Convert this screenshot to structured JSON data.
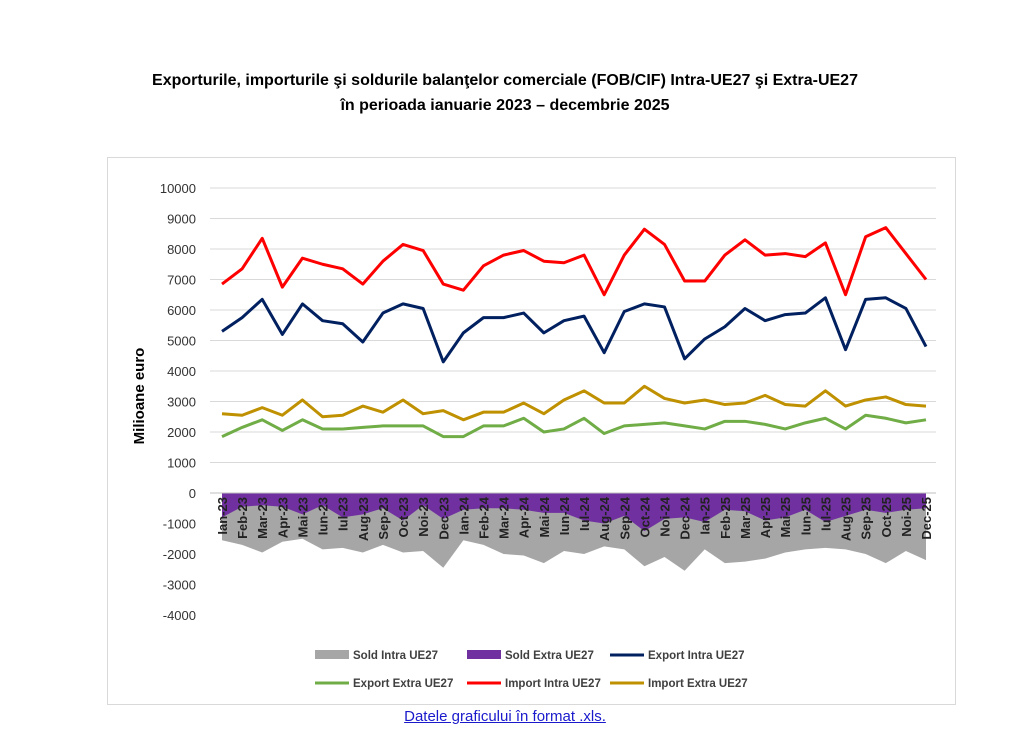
{
  "title": {
    "line1": "Exporturile, importurile şi soldurile balanţelor comerciale (FOB/CIF) Intra-UE27 şi Extra-UE27",
    "line2": "în perioada ianuarie 2023 – decembrie 2025"
  },
  "link_text": "Datele graficului în format .xls.",
  "chart_data": {
    "type": "line",
    "ylabel": "Milioane euro",
    "ylim": [
      -4000,
      10000
    ],
    "yticks": [
      10000,
      9000,
      8000,
      7000,
      6000,
      5000,
      4000,
      3000,
      2000,
      1000,
      0,
      -1000,
      -2000,
      -3000,
      -4000
    ],
    "categories": [
      "Ian-23",
      "Feb-23",
      "Mar-23",
      "Apr-23",
      "Mai-23",
      "Iun-23",
      "Iul-23",
      "Aug-23",
      "Sep-23",
      "Oct-23",
      "Noi-23",
      "Dec-23",
      "Ian-24",
      "Feb-24",
      "Mar-24",
      "Apr-24",
      "Mai-24",
      "Iun-24",
      "Iul-24",
      "Aug-24",
      "Sep-24",
      "Oct-24",
      "Noi-24",
      "Dec-24",
      "Ian-25",
      "Feb-25",
      "Mar-25",
      "Apr-25",
      "Mai-25",
      "Iun-25",
      "Iul-25",
      "Aug-25",
      "Sep-25",
      "Oct-25",
      "Noi-25",
      "Dec-25"
    ],
    "series": [
      {
        "name": "Sold Intra UE27",
        "kind": "area",
        "color": "#a6a6a6",
        "values": [
          -1550,
          -1700,
          -1950,
          -1600,
          -1500,
          -1850,
          -1800,
          -1950,
          -1700,
          -1950,
          -1900,
          -2450,
          -1550,
          -1700,
          -2000,
          -2050,
          -2300,
          -1900,
          -2000,
          -1750,
          -1850,
          -2400,
          -2100,
          -2550,
          -1850,
          -2300,
          -2250,
          -2150,
          -1950,
          -1850,
          -1800,
          -1850,
          -2000,
          -2300,
          -1900,
          -2200
        ]
      },
      {
        "name": "Sold Extra UE27",
        "kind": "area",
        "color": "#7030a0",
        "values": [
          -800,
          -450,
          -400,
          -450,
          -700,
          -400,
          -800,
          -700,
          -500,
          -900,
          -400,
          -850,
          -550,
          -500,
          -500,
          -550,
          -650,
          -650,
          -900,
          -1000,
          -750,
          -1250,
          -850,
          -800,
          -950,
          -550,
          -600,
          -900,
          -800,
          -550,
          -950,
          -750,
          -550,
          -650,
          -550,
          -500
        ]
      },
      {
        "name": "Export Intra UE27",
        "kind": "line",
        "color": "#002060",
        "values": [
          5300,
          5750,
          6350,
          5200,
          6200,
          5650,
          5550,
          4950,
          5900,
          6200,
          6050,
          4300,
          5250,
          5750,
          5750,
          5900,
          5250,
          5650,
          5800,
          4600,
          5950,
          6200,
          6100,
          4400,
          5050,
          5450,
          6050,
          5650,
          5850,
          5900,
          6400,
          4700,
          6350,
          6400,
          6050,
          4800
        ]
      },
      {
        "name": "Export Extra UE27",
        "kind": "line",
        "color": "#70ad47",
        "values": [
          1850,
          2150,
          2400,
          2050,
          2400,
          2100,
          2100,
          2150,
          2200,
          2200,
          2200,
          1850,
          1850,
          2200,
          2200,
          2450,
          2000,
          2100,
          2450,
          1950,
          2200,
          2250,
          2300,
          2200,
          2100,
          2350,
          2350,
          2250,
          2100,
          2300,
          2450,
          2100,
          2550,
          2450,
          2300,
          2400
        ]
      },
      {
        "name": "Import Intra UE27",
        "kind": "line",
        "color": "#ff0000",
        "values": [
          6850,
          7350,
          8350,
          6750,
          7700,
          7500,
          7350,
          6850,
          7600,
          8150,
          7950,
          6850,
          6650,
          7450,
          7800,
          7950,
          7600,
          7550,
          7800,
          6500,
          7800,
          8650,
          8150,
          6950,
          6950,
          7800,
          8300,
          7800,
          7850,
          7750,
          8200,
          6500,
          8400,
          8700,
          7850,
          7000
        ]
      },
      {
        "name": "Import Extra UE27",
        "kind": "line",
        "color": "#bf9000",
        "values": [
          2600,
          2550,
          2800,
          2550,
          3050,
          2500,
          2550,
          2850,
          2650,
          3050,
          2600,
          2700,
          2400,
          2650,
          2650,
          2950,
          2600,
          3050,
          3350,
          2950,
          2950,
          3500,
          3100,
          2950,
          3050,
          2900,
          2950,
          3200,
          2900,
          2850,
          3350,
          2850,
          3050,
          3150,
          2900,
          2850
        ]
      }
    ],
    "legend": [
      "Sold Intra UE27",
      "Sold Extra UE27",
      "Export Intra UE27",
      "Export Extra UE27",
      "Import Intra UE27",
      "Import Extra UE27"
    ],
    "legend_position": "bottom"
  }
}
